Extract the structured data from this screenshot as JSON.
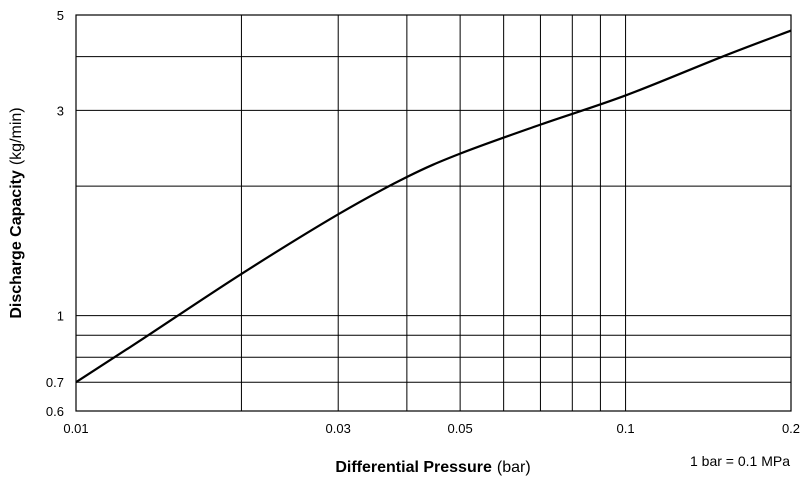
{
  "chart_data": {
    "type": "line",
    "xlabel_bold": "Differential Pressure",
    "xlabel_unit": "(bar)",
    "ylabel_bold": "Discharge Capacity",
    "ylabel_unit": "(kg/min)",
    "xscale": "log",
    "yscale": "log",
    "xlim": [
      0.01,
      0.2
    ],
    "ylim": [
      0.6,
      5
    ],
    "grid": true,
    "x_ticks": [
      {
        "value": 0.01,
        "label": "0.01"
      },
      {
        "value": 0.03,
        "label": "0.03"
      },
      {
        "value": 0.05,
        "label": "0.05"
      },
      {
        "value": 0.1,
        "label": "0.1"
      },
      {
        "value": 0.2,
        "label": "0.2"
      }
    ],
    "y_ticks": [
      {
        "value": 0.6,
        "label": "0.6"
      },
      {
        "value": 0.7,
        "label": "0.7"
      },
      {
        "value": 1,
        "label": "1"
      },
      {
        "value": 3,
        "label": "3"
      },
      {
        "value": 5,
        "label": "5"
      }
    ],
    "x_grid": [
      0.02,
      0.03,
      0.04,
      0.05,
      0.06,
      0.07,
      0.08,
      0.09,
      0.1
    ],
    "y_grid": [
      0.7,
      0.8,
      0.9,
      1,
      2,
      3,
      4
    ],
    "series": [
      {
        "x": [
          0.01,
          0.013,
          0.02,
          0.03,
          0.04,
          0.05,
          0.07,
          0.1,
          0.15,
          0.2
        ],
        "y": [
          0.7,
          0.87,
          1.25,
          1.72,
          2.1,
          2.38,
          2.78,
          3.25,
          4.0,
          4.6
        ]
      }
    ],
    "annotation": "1 bar = 0.1 MPa"
  }
}
